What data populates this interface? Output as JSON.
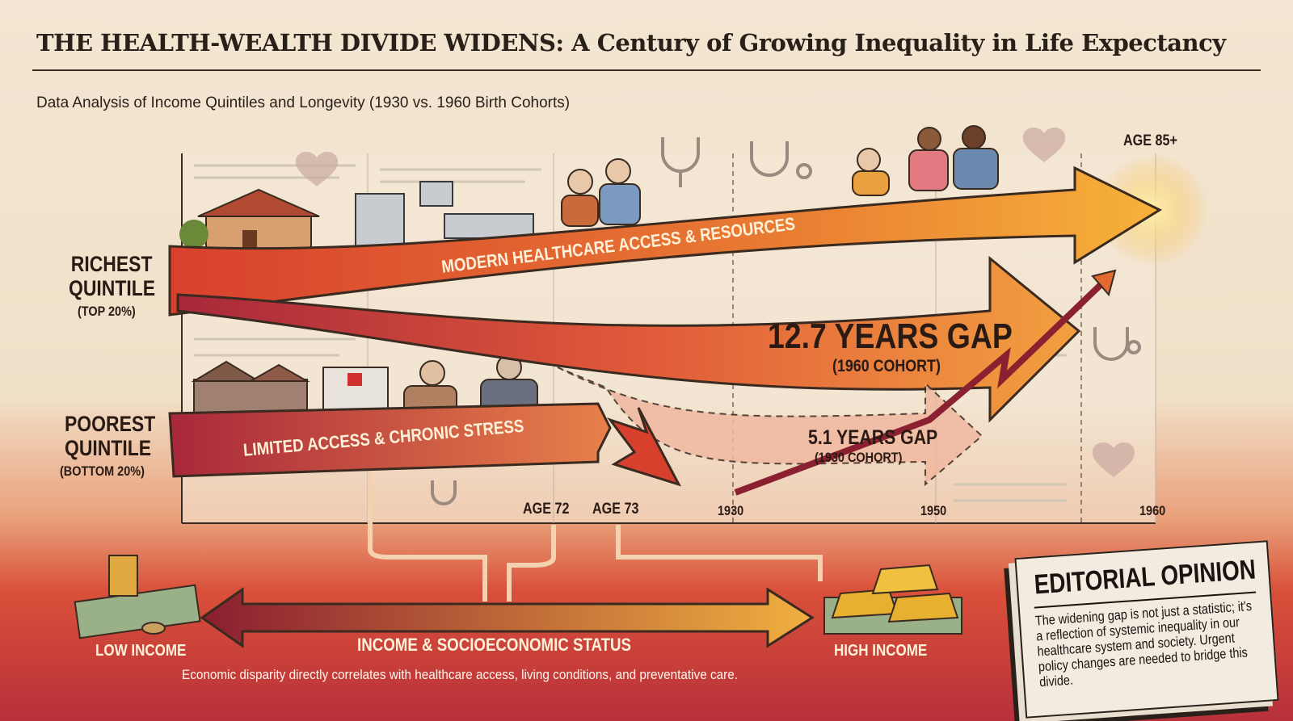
{
  "title": "THE HEALTH-WEALTH DIVIDE WIDENS: A Century of Growing Inequality in Life Expectancy",
  "subtitle": "Data Analysis of Income Quintiles and Longevity (1930 vs. 1960 Birth Cohorts)",
  "groups": {
    "richest": {
      "line1": "RICHEST",
      "line2": "QUINTILE",
      "note": "(TOP 20%)",
      "banner": "MODERN HEALTHCARE ACCESS & RESOURCES"
    },
    "poorest": {
      "line1": "POOREST",
      "line2": "QUINTILE",
      "note": "(BOTTOM 20%)",
      "banner": "LIMITED ACCESS & CHRONIC STRESS"
    }
  },
  "gaps": {
    "cohort_1960": {
      "value": "12.7 YEARS GAP",
      "label": "(1960 COHORT)"
    },
    "cohort_1930": {
      "value": "5.1 YEARS GAP",
      "label": "(1930 COHORT)"
    }
  },
  "ages": {
    "age_top": "AGE 85+",
    "age_72": "AGE 72",
    "age_73": "AGE 73"
  },
  "years": [
    "1930",
    "1950",
    "1960"
  ],
  "income_axis": {
    "low": "LOW INCOME",
    "center": "INCOME & SOCIOECONOMIC STATUS",
    "high": "HIGH INCOME"
  },
  "footnote": "Economic disparity directly correlates with healthcare access, living conditions, and preventative care.",
  "editorial": {
    "title": "EDITORIAL OPINION",
    "body": "The widening gap is not just a statistic; it's a reflection of systemic inequality in our healthcare system and society. Urgent policy changes are needed to bridge this divide."
  },
  "colors": {
    "rich_arrow": "#f0a030",
    "poor_arrow": "#a8283a",
    "accent_red": "#d9432e",
    "paper": "#f3e6d2"
  }
}
